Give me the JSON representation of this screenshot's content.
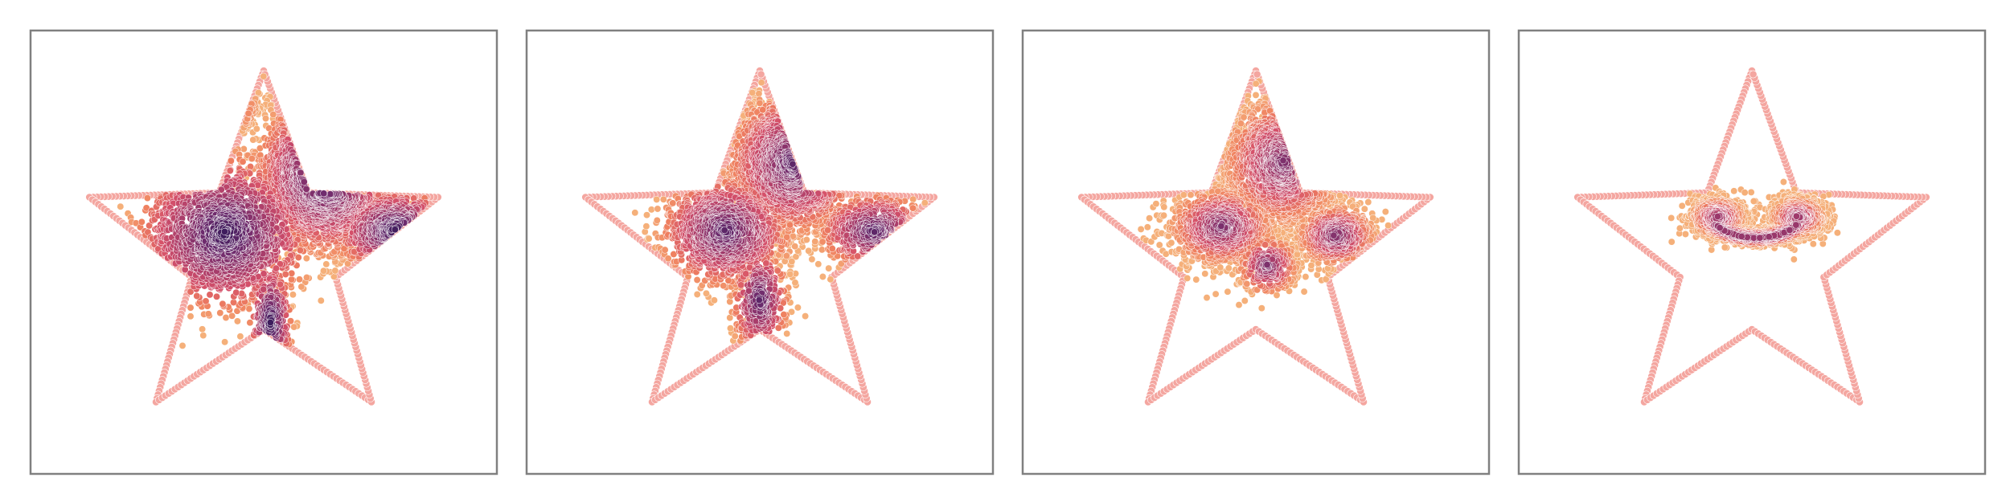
{
  "chart_data": [
    {
      "type": "scatter",
      "panel": 1,
      "title": "",
      "xlabel": "",
      "ylabel": "",
      "xlim": [
        -1.0,
        1.0
      ],
      "ylim": [
        -1.0,
        1.0
      ],
      "grid": false,
      "star_boundary": {
        "outer_radius": 0.8,
        "inner_radius": 0.33,
        "color": "#f4a6a0"
      },
      "clusters": [
        {
          "name": "",
          "cx": -0.17,
          "cy": -0.09,
          "sx": 0.17,
          "sy": 0.15,
          "n": 1500
        },
        {
          "name": "",
          "cx": 0.27,
          "cy": -0.35,
          "sx": 0.13,
          "sy": 0.15,
          "n": 1400
        },
        {
          "name": "",
          "cx": 0.58,
          "cy": -0.1,
          "sx": 0.12,
          "sy": 0.08,
          "n": 500
        },
        {
          "name": "",
          "cx": 0.03,
          "cy": 0.3,
          "sx": 0.04,
          "sy": 0.12,
          "n": 250
        },
        {
          "name": "",
          "cx": -0.26,
          "cy": -0.65,
          "sx": 0.09,
          "sy": 0.06,
          "n": 250
        }
      ],
      "pattern": "checkerboard",
      "colormap": [
        "#3b1c5c",
        "#6c2b6d",
        "#a13a6b",
        "#d4506a",
        "#ef8060",
        "#f5b07a"
      ],
      "color_shift": 0.0
    },
    {
      "type": "scatter",
      "panel": 2,
      "title": "",
      "xlabel": "",
      "ylabel": "",
      "xlim": [
        -1.0,
        1.0
      ],
      "ylim": [
        -1.0,
        1.0
      ],
      "grid": false,
      "star_boundary": {
        "outer_radius": 0.8,
        "inner_radius": 0.33,
        "color": "#f4a6a0"
      },
      "clusters": [
        {
          "name": "",
          "cx": -0.15,
          "cy": -0.1,
          "sx": 0.14,
          "sy": 0.12,
          "n": 1300
        },
        {
          "name": "",
          "cx": 0.15,
          "cy": -0.4,
          "sx": 0.14,
          "sy": 0.15,
          "n": 1300
        },
        {
          "name": "",
          "cx": 0.5,
          "cy": -0.1,
          "sx": 0.12,
          "sy": 0.08,
          "n": 450
        },
        {
          "name": "",
          "cx": 0.0,
          "cy": 0.2,
          "sx": 0.06,
          "sy": 0.12,
          "n": 350
        },
        {
          "name": "",
          "cx": -0.3,
          "cy": -0.65,
          "sx": 0.1,
          "sy": 0.06,
          "n": 250
        }
      ],
      "pattern": "checkerboard",
      "colormap": [
        "#3b1c5c",
        "#6c2b6d",
        "#a13a6b",
        "#d4506a",
        "#ef8060",
        "#f5b07a"
      ],
      "color_shift": 0.12
    },
    {
      "type": "scatter",
      "panel": 3,
      "title": "",
      "xlabel": "",
      "ylabel": "",
      "xlim": [
        -1.0,
        1.0
      ],
      "ylim": [
        -1.0,
        1.0
      ],
      "grid": false,
      "star_boundary": {
        "outer_radius": 0.8,
        "inner_radius": 0.33,
        "color": "#f4a6a0"
      },
      "clusters": [
        {
          "name": "",
          "cx": -0.15,
          "cy": -0.12,
          "sx": 0.12,
          "sy": 0.09,
          "n": 1000
        },
        {
          "name": "",
          "cx": 0.35,
          "cy": -0.08,
          "sx": 0.09,
          "sy": 0.07,
          "n": 600
        },
        {
          "name": "",
          "cx": 0.12,
          "cy": -0.4,
          "sx": 0.14,
          "sy": 0.15,
          "n": 1300
        },
        {
          "name": "",
          "cx": 0.05,
          "cy": 0.05,
          "sx": 0.07,
          "sy": 0.07,
          "n": 300
        },
        {
          "name": "",
          "cx": -0.3,
          "cy": -0.55,
          "sx": 0.09,
          "sy": 0.06,
          "n": 250
        }
      ],
      "pattern": "blobs",
      "colormap": [
        "#3b1c5c",
        "#6c2b6d",
        "#a13a6b",
        "#d4506a",
        "#ef8060",
        "#f5b07a"
      ],
      "color_shift": 0.25
    },
    {
      "type": "scatter",
      "panel": 4,
      "title": "",
      "xlabel": "",
      "ylabel": "",
      "xlim": [
        -1.0,
        1.0
      ],
      "ylim": [
        -1.0,
        1.0
      ],
      "grid": false,
      "star_boundary": {
        "outer_radius": 0.8,
        "inner_radius": 0.33,
        "color": "#f4a6a0"
      },
      "clusters": [
        {
          "name": "",
          "cx": -0.15,
          "cy": -0.16,
          "sx": 0.07,
          "sy": 0.05,
          "n": 650
        },
        {
          "name": "",
          "cx": 0.2,
          "cy": -0.16,
          "sx": 0.07,
          "sy": 0.05,
          "n": 650
        },
        {
          "name": "",
          "arc": true,
          "cx": 0.02,
          "cy": -0.3,
          "r": 0.2,
          "thickness": 0.04,
          "n": 700
        }
      ],
      "pattern": "smiley",
      "colormap": [
        "#3b1c5c",
        "#6c2b6d",
        "#a13a6b",
        "#d4506a",
        "#ef8060",
        "#f5b07a"
      ],
      "color_shift": 0.35
    }
  ]
}
